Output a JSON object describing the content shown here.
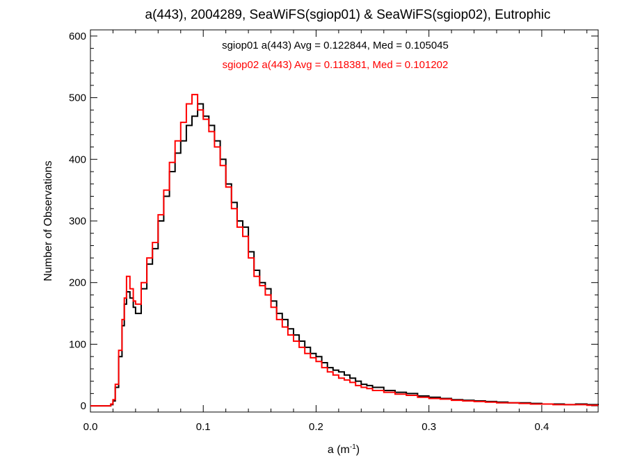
{
  "chart_data": {
    "type": "line",
    "step": true,
    "title": "a(443), 2004289, SeaWiFS(sgiop01) & SeaWiFS(sgiop02), Eutrophic",
    "xlabel_base": "a (m",
    "xlabel_sup": "-1",
    "xlabel_close": ")",
    "ylabel": "Number of Observations",
    "xlim": [
      0.0,
      0.45
    ],
    "ylim": [
      -10,
      610
    ],
    "xticks": [
      0.0,
      0.1,
      0.2,
      0.3,
      0.4
    ],
    "xtick_labels": [
      "0.0",
      "0.1",
      "0.2",
      "0.3",
      "0.4"
    ],
    "yticks": [
      0,
      100,
      200,
      300,
      400,
      500,
      600
    ],
    "ytick_labels": [
      "0",
      "100",
      "200",
      "300",
      "400",
      "500",
      "600"
    ],
    "grid": false,
    "annotations": [
      {
        "text": "sgiop01 a(443) Avg = 0.122844, Med = 0.105045",
        "color": "#000000"
      },
      {
        "text": "sgiop02 a(443) Avg = 0.118381, Med = 0.101202",
        "color": "#ff0000"
      }
    ],
    "series": [
      {
        "color": "#000000",
        "x": [
          0.0,
          0.01,
          0.018,
          0.02,
          0.022,
          0.025,
          0.028,
          0.03,
          0.032,
          0.035,
          0.038,
          0.04,
          0.045,
          0.05,
          0.055,
          0.06,
          0.065,
          0.07,
          0.075,
          0.08,
          0.085,
          0.09,
          0.095,
          0.1,
          0.105,
          0.11,
          0.115,
          0.12,
          0.125,
          0.13,
          0.135,
          0.14,
          0.145,
          0.15,
          0.155,
          0.16,
          0.165,
          0.17,
          0.175,
          0.18,
          0.185,
          0.19,
          0.195,
          0.2,
          0.205,
          0.21,
          0.215,
          0.22,
          0.225,
          0.23,
          0.235,
          0.24,
          0.245,
          0.25,
          0.26,
          0.27,
          0.28,
          0.29,
          0.3,
          0.31,
          0.32,
          0.33,
          0.34,
          0.35,
          0.36,
          0.37,
          0.38,
          0.39,
          0.4,
          0.41,
          0.42,
          0.43,
          0.44,
          0.45
        ],
        "y": [
          0,
          0,
          2,
          8,
          30,
          80,
          130,
          165,
          185,
          175,
          160,
          150,
          190,
          230,
          255,
          300,
          340,
          380,
          410,
          430,
          455,
          470,
          490,
          470,
          455,
          430,
          400,
          360,
          330,
          300,
          290,
          250,
          220,
          200,
          190,
          170,
          150,
          140,
          125,
          115,
          105,
          95,
          85,
          80,
          70,
          62,
          58,
          55,
          50,
          45,
          40,
          35,
          33,
          30,
          25,
          22,
          20,
          16,
          14,
          12,
          10,
          9,
          8,
          7,
          6,
          5,
          5,
          4,
          3,
          3,
          2,
          3,
          2,
          1
        ]
      },
      {
        "color": "#ff0000",
        "x": [
          0.0,
          0.01,
          0.018,
          0.02,
          0.022,
          0.025,
          0.028,
          0.03,
          0.032,
          0.035,
          0.038,
          0.04,
          0.045,
          0.05,
          0.055,
          0.06,
          0.065,
          0.07,
          0.075,
          0.08,
          0.085,
          0.09,
          0.095,
          0.1,
          0.105,
          0.11,
          0.115,
          0.12,
          0.125,
          0.13,
          0.135,
          0.14,
          0.145,
          0.15,
          0.155,
          0.16,
          0.165,
          0.17,
          0.175,
          0.18,
          0.185,
          0.19,
          0.195,
          0.2,
          0.205,
          0.21,
          0.215,
          0.22,
          0.225,
          0.23,
          0.235,
          0.24,
          0.245,
          0.25,
          0.26,
          0.27,
          0.28,
          0.29,
          0.3,
          0.31,
          0.32,
          0.33,
          0.34,
          0.35,
          0.36,
          0.37,
          0.38,
          0.39,
          0.4,
          0.41,
          0.42,
          0.43,
          0.44,
          0.45
        ],
        "y": [
          0,
          0,
          3,
          10,
          35,
          90,
          140,
          175,
          210,
          190,
          170,
          165,
          200,
          240,
          265,
          310,
          350,
          395,
          430,
          460,
          490,
          505,
          480,
          465,
          445,
          420,
          390,
          355,
          320,
          290,
          275,
          240,
          210,
          195,
          180,
          160,
          140,
          128,
          115,
          105,
          95,
          85,
          78,
          72,
          62,
          55,
          50,
          45,
          42,
          38,
          33,
          30,
          28,
          25,
          22,
          19,
          17,
          14,
          12,
          11,
          9,
          8,
          7,
          6,
          5,
          5,
          4,
          3,
          3,
          2,
          2,
          2,
          1,
          1
        ]
      }
    ]
  }
}
